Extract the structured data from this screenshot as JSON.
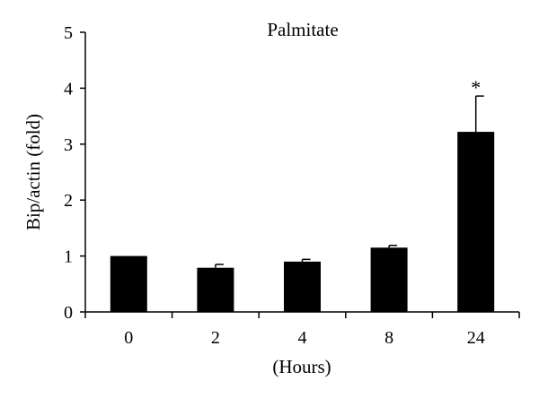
{
  "chart_data": {
    "type": "bar",
    "title": "Palmitate",
    "xlabel": "(Hours)",
    "ylabel": "Bip/actin (fold)",
    "categories": [
      "0",
      "2",
      "4",
      "8",
      "24"
    ],
    "values": [
      1.0,
      0.79,
      0.9,
      1.15,
      3.22
    ],
    "errors": [
      0.0,
      0.06,
      0.04,
      0.04,
      0.64
    ],
    "ylim": [
      0,
      5
    ],
    "yticks": [
      "0",
      "1",
      "2",
      "3",
      "4",
      "5"
    ],
    "annotations": [
      {
        "category": "24",
        "text": "*"
      }
    ],
    "bar_color": "#000000",
    "grid": false,
    "legend": "none"
  }
}
